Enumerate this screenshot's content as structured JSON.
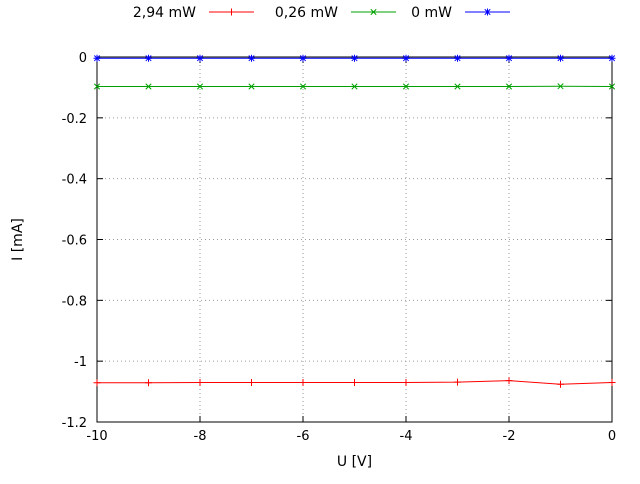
{
  "chart_data": {
    "type": "line",
    "title": "",
    "xlabel": "U [V]",
    "ylabel": "I [mA]",
    "xlim": [
      -10,
      0
    ],
    "ylim": [
      -1.2,
      0
    ],
    "grid": true,
    "legend_position": "top-center",
    "x": [
      -10,
      -9,
      -8,
      -7,
      -6,
      -5,
      -4,
      -3,
      -2,
      -1,
      0
    ],
    "xticks": {
      "values": [
        -10,
        -8,
        -6,
        -4,
        -2,
        0
      ],
      "labels": [
        "-10",
        "-8",
        "-6",
        "-4",
        "-2",
        "0"
      ]
    },
    "yticks": {
      "values": [
        0,
        -0.2,
        -0.4,
        -0.6,
        -0.8,
        -1,
        -1.2
      ],
      "labels": [
        "0",
        "-0.2",
        "-0.4",
        "-0.6",
        "-0.8",
        "-1",
        "-1.2"
      ]
    },
    "series": [
      {
        "name": "2,94 mW",
        "color": "#ff0000",
        "marker": "plus",
        "values": [
          -1.071,
          -1.071,
          -1.07,
          -1.07,
          -1.07,
          -1.07,
          -1.07,
          -1.069,
          -1.064,
          -1.076,
          -1.07
        ]
      },
      {
        "name": "0,26 mW",
        "color": "#00a000",
        "marker": "cross",
        "values": [
          -0.097,
          -0.097,
          -0.097,
          -0.097,
          -0.097,
          -0.097,
          -0.097,
          -0.097,
          -0.097,
          -0.096,
          -0.097
        ]
      },
      {
        "name": "0 mW",
        "color": "#0000ff",
        "marker": "asterisk",
        "values": [
          -0.004,
          -0.004,
          -0.004,
          -0.004,
          -0.004,
          -0.004,
          -0.004,
          -0.004,
          -0.004,
          -0.004,
          -0.004
        ]
      }
    ],
    "colors": {
      "grid": "#9a9a9a",
      "border": "#000000",
      "text": "#000000"
    }
  }
}
